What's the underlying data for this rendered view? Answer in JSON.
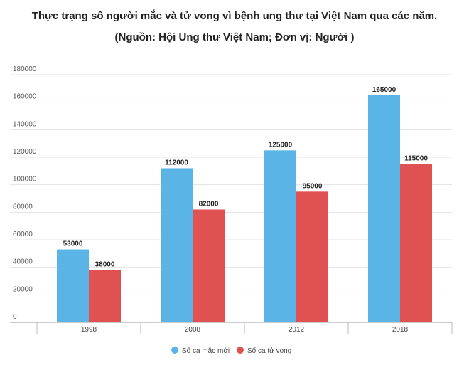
{
  "chart_data": {
    "type": "bar",
    "title": "Thực trạng số người mắc và tử vong vì bệnh ung thư tại Việt Nam qua các năm.",
    "subtitle": "(Nguồn: Hội Ung thư Việt Nam; Đơn vị: Người )",
    "categories": [
      "1998",
      "2008",
      "2012",
      "2018"
    ],
    "series": [
      {
        "name": "Số ca mắc mới",
        "color": "#5ab4e5",
        "values": [
          53000,
          112000,
          125000,
          165000
        ]
      },
      {
        "name": "Số ca tử vong",
        "color": "#e05252",
        "values": [
          38000,
          82000,
          95000,
          115000
        ]
      }
    ],
    "ylim": [
      0,
      180000
    ],
    "yticks": [
      "0",
      "20000",
      "40000",
      "60000",
      "80000",
      "100000",
      "120000",
      "140000",
      "160000",
      "180000"
    ],
    "grid": true,
    "legend": "bottom-center"
  }
}
